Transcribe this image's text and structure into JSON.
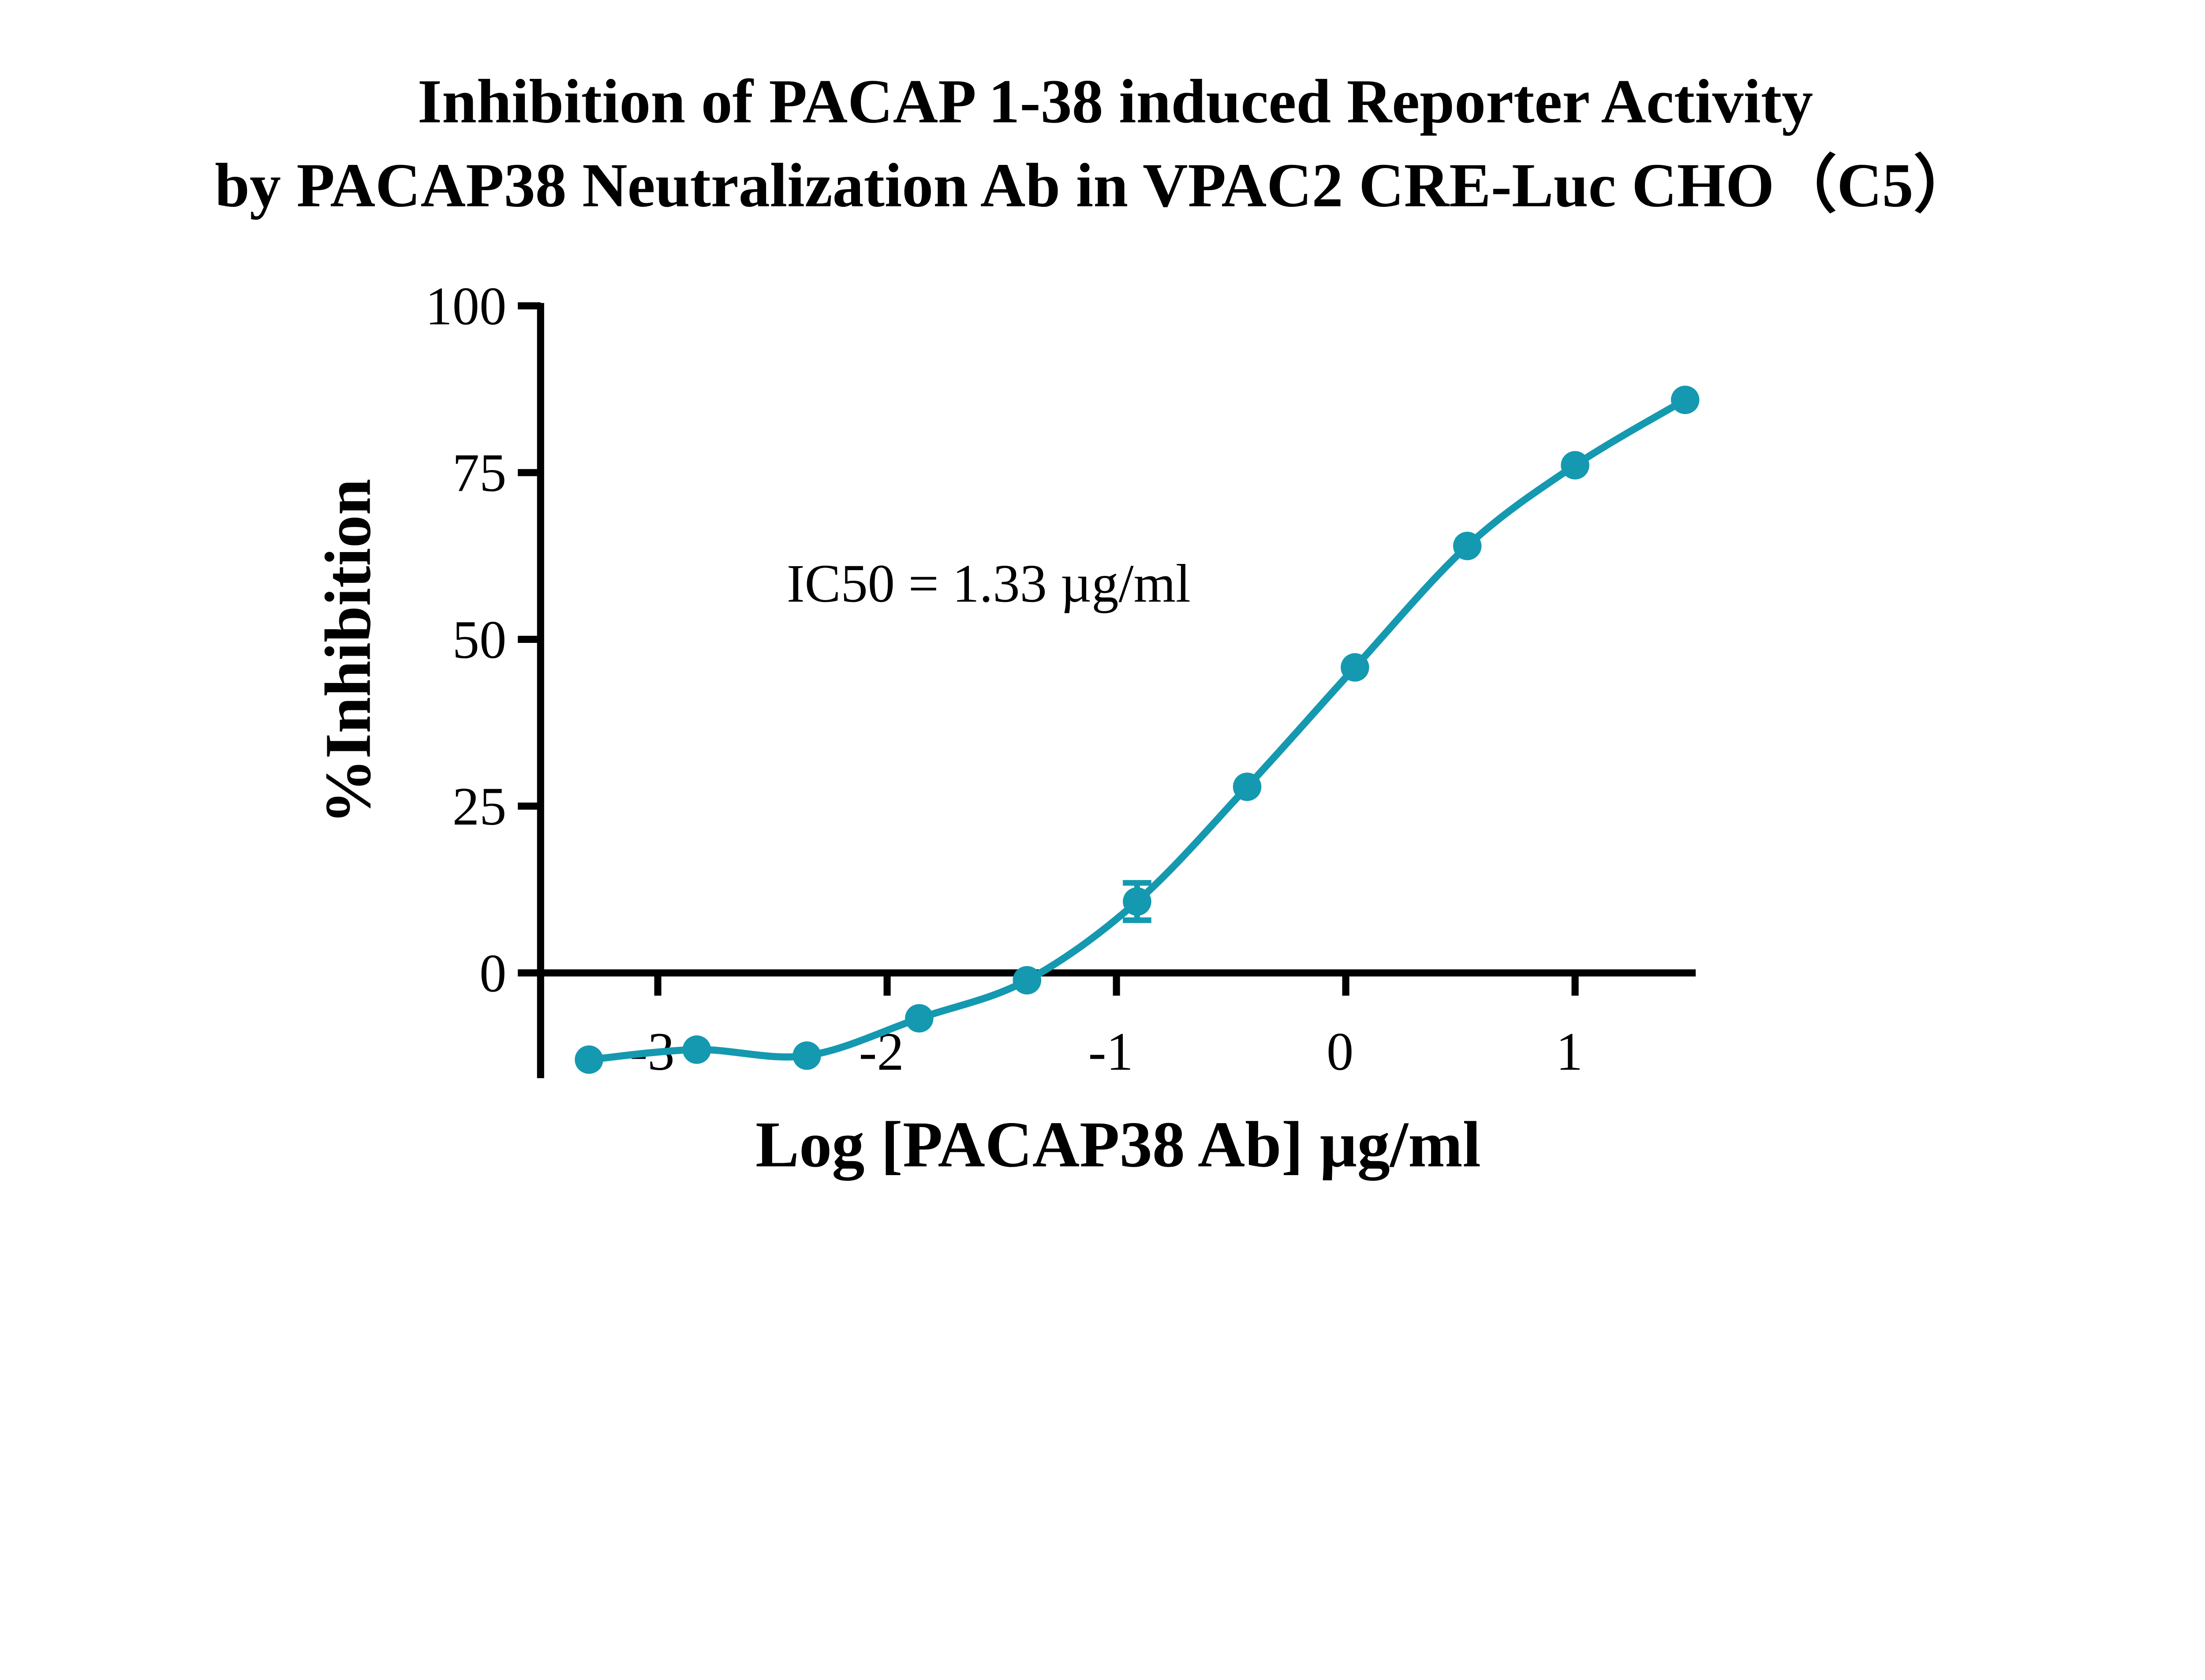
{
  "chart_data": {
    "type": "scatter",
    "title": [
      "Inhibition of PACAP 1-38 induced Reporter Activity",
      "by PACAP38 Neutralization Ab in VPAC2 CRE-Luc CHO（C5）"
    ],
    "xlabel": "Log [PACAP38 Ab] µg/ml",
    "ylabel": "%Inhibition",
    "xlim": [
      -3.5,
      1.5
    ],
    "ylim": [
      -15.5,
      100
    ],
    "xticks": [
      "-3",
      "-2",
      "-1",
      "0",
      "1"
    ],
    "yticks": [
      "0",
      "25",
      "50",
      "75",
      "100"
    ],
    "grid": false,
    "color": "#1499b0",
    "annotation": "IC50 = 1.33 µg/ml",
    "series": [
      {
        "x": [
          -3.3,
          -2.83,
          -2.35,
          -1.86,
          -1.39,
          -0.91,
          -0.43,
          0.04,
          0.53,
          1.0,
          1.48
        ],
        "y": [
          -13.0,
          -11.5,
          -12.4,
          -6.8,
          -1.1,
          10.7,
          27.9,
          45.8,
          64.0,
          76.1,
          85.9
        ],
        "error": [
          0,
          0,
          0,
          0,
          0,
          2.8,
          0,
          0,
          0,
          0,
          0
        ]
      }
    ],
    "fit": "sigmoidal dose-response curve"
  }
}
